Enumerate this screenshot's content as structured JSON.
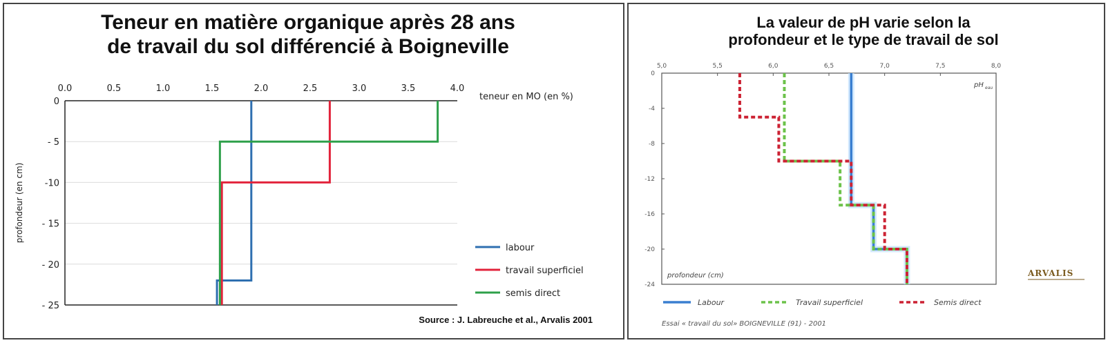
{
  "chart_data": [
    {
      "type": "line",
      "title": "Teneur en matière organique après 28 ans de travail du sol différencié à Boigneville",
      "title_lines": [
        "Teneur en matière organique après 28 ans",
        "de travail du sol différencié à Boigneville"
      ],
      "xlabel": "teneur en MO (en %)",
      "ylabel": "profondeur (en cm)",
      "xlim": [
        0,
        4
      ],
      "ylim": [
        -25,
        0
      ],
      "x_ticks": [
        "0.0",
        "0.5",
        "1.0",
        "1.5",
        "2.0",
        "2.5",
        "3.0",
        "3.5",
        "4.0"
      ],
      "y_ticks": [
        "0",
        "- 5",
        "-10",
        "- 15",
        "- 20",
        "- 25"
      ],
      "x_axis_position": "top",
      "grid": "horizontal",
      "legend_position": "right",
      "source": "Source : J. Labreuche et al., Arvalis 2001",
      "series": [
        {
          "name": "labour",
          "color": "#2e6fb0",
          "style": "solid",
          "points": [
            [
              1.9,
              0
            ],
            [
              1.9,
              -22
            ],
            [
              1.55,
              -22
            ],
            [
              1.55,
              -25
            ]
          ]
        },
        {
          "name": "travail superficiel",
          "color": "#e2233b",
          "style": "solid",
          "points": [
            [
              2.7,
              0
            ],
            [
              2.7,
              -10
            ],
            [
              1.6,
              -10
            ],
            [
              1.6,
              -25
            ]
          ]
        },
        {
          "name": "semis direct",
          "color": "#2ea04a",
          "style": "solid",
          "points": [
            [
              3.8,
              0
            ],
            [
              3.8,
              -5
            ],
            [
              1.58,
              -5
            ],
            [
              1.58,
              -25
            ]
          ]
        }
      ]
    },
    {
      "type": "line",
      "title": "La valeur de pH varie selon la profondeur et le type de travail de sol",
      "title_lines": [
        "La valeur de pH  varie selon la",
        "profondeur et le type de travail de sol"
      ],
      "xlabel": "pH",
      "xlabel_sub": "eau",
      "ylabel": "profondeur (cm)",
      "xlim": [
        5,
        8
      ],
      "ylim": [
        -24,
        0
      ],
      "x_ticks": [
        "5,0",
        "5,5",
        "6,0",
        "6,5",
        "7,0",
        "7,5",
        "8,0"
      ],
      "y_ticks": [
        "0",
        "-4",
        "-8",
        "-12",
        "-16",
        "-20",
        "-24"
      ],
      "x_axis_position": "top",
      "grid": "none",
      "legend_position": "bottom",
      "note": "Essai « travail du sol» BOIGNEVILLE (91) - 2001",
      "logo": "ARVALIS",
      "series": [
        {
          "name": "Labour",
          "color": "#3a7fd0",
          "style": "solid",
          "points": [
            [
              6.7,
              0
            ],
            [
              6.7,
              -15
            ],
            [
              6.9,
              -15
            ],
            [
              6.9,
              -20
            ],
            [
              7.2,
              -20
            ],
            [
              7.2,
              -24
            ]
          ]
        },
        {
          "name": "Travail superficiel",
          "color": "#6cc24a",
          "style": "dashed",
          "points": [
            [
              6.1,
              0
            ],
            [
              6.1,
              -10
            ],
            [
              6.6,
              -10
            ],
            [
              6.6,
              -15
            ],
            [
              6.9,
              -15
            ],
            [
              6.9,
              -20
            ],
            [
              7.2,
              -20
            ],
            [
              7.2,
              -24
            ]
          ]
        },
        {
          "name": "Semis direct",
          "color": "#cc2233",
          "style": "dashed",
          "points": [
            [
              5.7,
              0
            ],
            [
              5.7,
              -5
            ],
            [
              6.05,
              -5
            ],
            [
              6.05,
              -10
            ],
            [
              6.7,
              -10
            ],
            [
              6.7,
              -15
            ],
            [
              7.0,
              -15
            ],
            [
              7.0,
              -20
            ],
            [
              7.2,
              -20
            ],
            [
              7.2,
              -24
            ]
          ]
        }
      ]
    }
  ]
}
